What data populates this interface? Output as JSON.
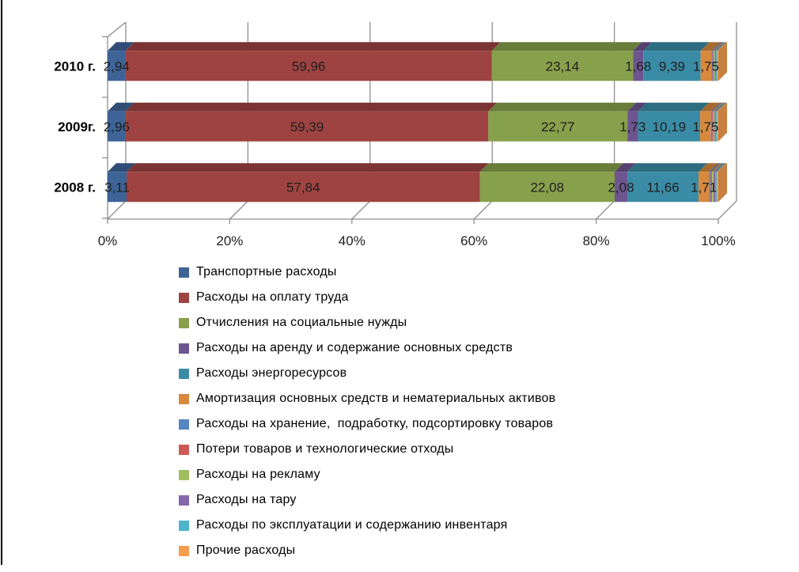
{
  "page": {
    "background": "#ffffff",
    "left_border_color": "#000000"
  },
  "colors": {
    "grid": "#8e8e8e",
    "axis": "#8e8e8e",
    "value_label": "#1f1f1f",
    "category_label": "#000000",
    "tick_label": "#1f1f1f"
  },
  "chart_data": {
    "type": "bar",
    "subtype": "stacked-horizontal-3d",
    "title": "",
    "xlabel": "",
    "ylabel": "",
    "axis": {
      "x_min": 0,
      "x_max": 100
    },
    "grid": true,
    "legend_position": "bottom-left",
    "x_ticks": [
      "0%",
      "20%",
      "40%",
      "60%",
      "80%",
      "100%"
    ],
    "categories": [
      "2010 г.",
      "2009г.",
      "2008 г."
    ],
    "series": [
      {
        "name": "Транспортные расходы",
        "color": "#3d6397",
        "values": [
          2.94,
          2.96,
          3.11
        ],
        "labels": [
          "2,94",
          "2,96",
          "3,11"
        ]
      },
      {
        "name": "Расходы на оплату труда",
        "color": "#9e4341",
        "values": [
          59.96,
          59.39,
          57.84
        ],
        "labels": [
          "59,96",
          "59,39",
          "57,84"
        ]
      },
      {
        "name": "Отчисления на социальные нужды",
        "color": "#87a04b",
        "values": [
          23.14,
          22.77,
          22.08
        ],
        "labels": [
          "23,14",
          "22,77",
          "22,08"
        ]
      },
      {
        "name": "Расходы на аренду и содержание основных средств",
        "color": "#6d5590",
        "values": [
          1.68,
          1.73,
          2.08
        ],
        "labels": [
          "1,68",
          "1,73",
          "2,08"
        ]
      },
      {
        "name": "Расходы энергоресурсов",
        "color": "#3a8ca6",
        "values": [
          9.39,
          10.19,
          11.66
        ],
        "labels": [
          "9,39",
          "10,19",
          "11,66"
        ]
      },
      {
        "name": "Амортизация основных средств и нематериальных активов",
        "color": "#d8893c",
        "values": [
          1.75,
          1.75,
          1.71
        ],
        "labels": [
          "1,75",
          "1,75",
          "1,71"
        ]
      },
      {
        "name": "Расходы на хранение,  подработку, подсортировку товаров",
        "color": "#5585c2",
        "values": [
          0.19,
          0.2,
          0.25
        ],
        "labels": [
          "",
          "",
          ""
        ]
      },
      {
        "name": "Потери товаров и технологические отходы",
        "color": "#cc5a56",
        "values": [
          0.19,
          0.2,
          0.25
        ],
        "labels": [
          "",
          "",
          ""
        ]
      },
      {
        "name": "Расходы на рекламу",
        "color": "#9fbe5f",
        "values": [
          0.19,
          0.2,
          0.25
        ],
        "labels": [
          "",
          "",
          ""
        ]
      },
      {
        "name": "Расходы на тару",
        "color": "#8568ac",
        "values": [
          0.19,
          0.2,
          0.25
        ],
        "labels": [
          "",
          "",
          ""
        ]
      },
      {
        "name": "Расходы по эксплуатации и содержанию инвентаря",
        "color": "#4fb3cb",
        "values": [
          0.19,
          0.2,
          0.26
        ],
        "labels": [
          "",
          "",
          ""
        ]
      },
      {
        "name": "Прочие расходы",
        "color": "#f49c4e",
        "values": [
          0.19,
          0.21,
          0.26
        ],
        "labels": [
          "",
          "",
          ""
        ]
      }
    ]
  }
}
